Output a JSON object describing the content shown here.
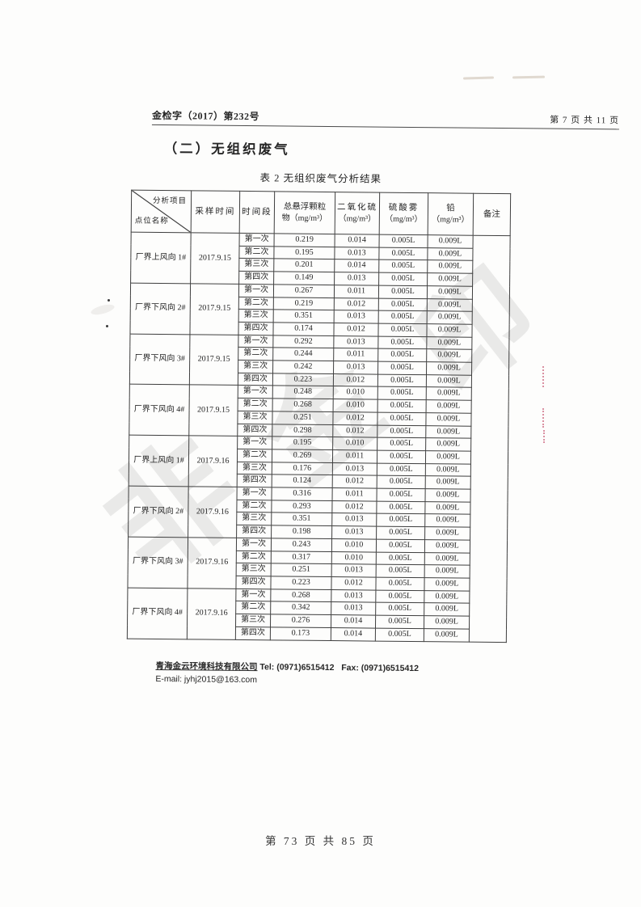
{
  "page": {
    "doc_number": "金检字（2017）第232号",
    "page_info": "第 7 页 共 11 页",
    "section_title": "（二）无组织废气",
    "table_caption": "表 2 无组织废气分析结果",
    "bottom_page_info": "第 73 页 共 85 页",
    "watermark_glyphs": [
      "非",
      "金",
      "印"
    ]
  },
  "footer": {
    "company": "青海金云环境科技有限公司",
    "tel": "Tel:  (0971)6515412",
    "fax": "Fax:  (0971)6515412",
    "email": "E-mail: jyhj2015@163.com"
  },
  "table": {
    "header": {
      "corner_top": "分析项目",
      "corner_bottom": "点位名称",
      "sampling_time": "采样时间",
      "period": "时间段",
      "tsp_line1": "总悬浮颗粒",
      "tsp_line2": "物（mg/m³）",
      "so2_line1": "二氧化硫",
      "so2_line2": "（mg/m³）",
      "h2so4_line1": "硫酸雾",
      "h2so4_line2": "（mg/m³）",
      "pb_line1": "铅",
      "pb_line2": "（mg/m³）",
      "remark": "备注"
    },
    "remark_value": "",
    "groups": [
      {
        "point": "厂界上风向 1#",
        "date": "2017.9.15",
        "rows": [
          {
            "period": "第一次",
            "tsp": "0.219",
            "so2": "0.014",
            "h2so4": "0.005L",
            "pb": "0.009L"
          },
          {
            "period": "第二次",
            "tsp": "0.195",
            "so2": "0.013",
            "h2so4": "0.005L",
            "pb": "0.009L"
          },
          {
            "period": "第三次",
            "tsp": "0.201",
            "so2": "0.014",
            "h2so4": "0.005L",
            "pb": "0.009L"
          },
          {
            "period": "第四次",
            "tsp": "0.149",
            "so2": "0.013",
            "h2so4": "0.005L",
            "pb": "0.009L"
          }
        ]
      },
      {
        "point": "厂界下风向 2#",
        "date": "2017.9.15",
        "rows": [
          {
            "period": "第一次",
            "tsp": "0.267",
            "so2": "0.011",
            "h2so4": "0.005L",
            "pb": "0.009L"
          },
          {
            "period": "第二次",
            "tsp": "0.219",
            "so2": "0.012",
            "h2so4": "0.005L",
            "pb": "0.009L"
          },
          {
            "period": "第三次",
            "tsp": "0.351",
            "so2": "0.013",
            "h2so4": "0.005L",
            "pb": "0.009L"
          },
          {
            "period": "第四次",
            "tsp": "0.174",
            "so2": "0.012",
            "h2so4": "0.005L",
            "pb": "0.009L"
          }
        ]
      },
      {
        "point": "厂界下风向 3#",
        "date": "2017.9.15",
        "rows": [
          {
            "period": "第一次",
            "tsp": "0.292",
            "so2": "0.013",
            "h2so4": "0.005L",
            "pb": "0.009L"
          },
          {
            "period": "第二次",
            "tsp": "0.244",
            "so2": "0.011",
            "h2so4": "0.005L",
            "pb": "0.009L"
          },
          {
            "period": "第三次",
            "tsp": "0.242",
            "so2": "0.013",
            "h2so4": "0.005L",
            "pb": "0.009L"
          },
          {
            "period": "第四次",
            "tsp": "0.223",
            "so2": "0.012",
            "h2so4": "0.005L",
            "pb": "0.009L"
          }
        ]
      },
      {
        "point": "厂界下风向 4#",
        "date": "2017.9.15",
        "rows": [
          {
            "period": "第一次",
            "tsp": "0.248",
            "so2": "0.010",
            "h2so4": "0.005L",
            "pb": "0.009L"
          },
          {
            "period": "第二次",
            "tsp": "0.268",
            "so2": "0.010",
            "h2so4": "0.005L",
            "pb": "0.009L"
          },
          {
            "period": "第三次",
            "tsp": "0.251",
            "so2": "0.012",
            "h2so4": "0.005L",
            "pb": "0.009L"
          },
          {
            "period": "第四次",
            "tsp": "0.298",
            "so2": "0.012",
            "h2so4": "0.005L",
            "pb": "0.009L"
          }
        ]
      },
      {
        "point": "厂界上风向 1#",
        "date": "2017.9.16",
        "rows": [
          {
            "period": "第一次",
            "tsp": "0.195",
            "so2": "0.010",
            "h2so4": "0.005L",
            "pb": "0.009L"
          },
          {
            "period": "第二次",
            "tsp": "0.269",
            "so2": "0.011",
            "h2so4": "0.005L",
            "pb": "0.009L"
          },
          {
            "period": "第三次",
            "tsp": "0.176",
            "so2": "0.013",
            "h2so4": "0.005L",
            "pb": "0.009L"
          },
          {
            "period": "第四次",
            "tsp": "0.124",
            "so2": "0.012",
            "h2so4": "0.005L",
            "pb": "0.009L"
          }
        ]
      },
      {
        "point": "厂界下风向 2#",
        "date": "2017.9.16",
        "rows": [
          {
            "period": "第一次",
            "tsp": "0.316",
            "so2": "0.011",
            "h2so4": "0.005L",
            "pb": "0.009L"
          },
          {
            "period": "第二次",
            "tsp": "0.293",
            "so2": "0.012",
            "h2so4": "0.005L",
            "pb": "0.009L"
          },
          {
            "period": "第三次",
            "tsp": "0.351",
            "so2": "0.013",
            "h2so4": "0.005L",
            "pb": "0.009L"
          },
          {
            "period": "第四次",
            "tsp": "0.198",
            "so2": "0.013",
            "h2so4": "0.005L",
            "pb": "0.009L"
          }
        ]
      },
      {
        "point": "厂界下风向 3#",
        "date": "2017.9.16",
        "rows": [
          {
            "period": "第一次",
            "tsp": "0.243",
            "so2": "0.010",
            "h2so4": "0.005L",
            "pb": "0.009L"
          },
          {
            "period": "第二次",
            "tsp": "0.317",
            "so2": "0.010",
            "h2so4": "0.005L",
            "pb": "0.009L"
          },
          {
            "period": "第三次",
            "tsp": "0.251",
            "so2": "0.013",
            "h2so4": "0.005L",
            "pb": "0.009L"
          },
          {
            "period": "第四次",
            "tsp": "0.223",
            "so2": "0.012",
            "h2so4": "0.005L",
            "pb": "0.009L"
          }
        ]
      },
      {
        "point": "厂界下风向 4#",
        "date": "2017.9.16",
        "rows": [
          {
            "period": "第一次",
            "tsp": "0.268",
            "so2": "0.013",
            "h2so4": "0.005L",
            "pb": "0.009L"
          },
          {
            "period": "第二次",
            "tsp": "0.342",
            "so2": "0.013",
            "h2so4": "0.005L",
            "pb": "0.009L"
          },
          {
            "period": "第三次",
            "tsp": "0.276",
            "so2": "0.014",
            "h2so4": "0.005L",
            "pb": "0.009L"
          },
          {
            "period": "第四次",
            "tsp": "0.173",
            "so2": "0.014",
            "h2so4": "0.005L",
            "pb": "0.009L"
          }
        ]
      }
    ]
  }
}
